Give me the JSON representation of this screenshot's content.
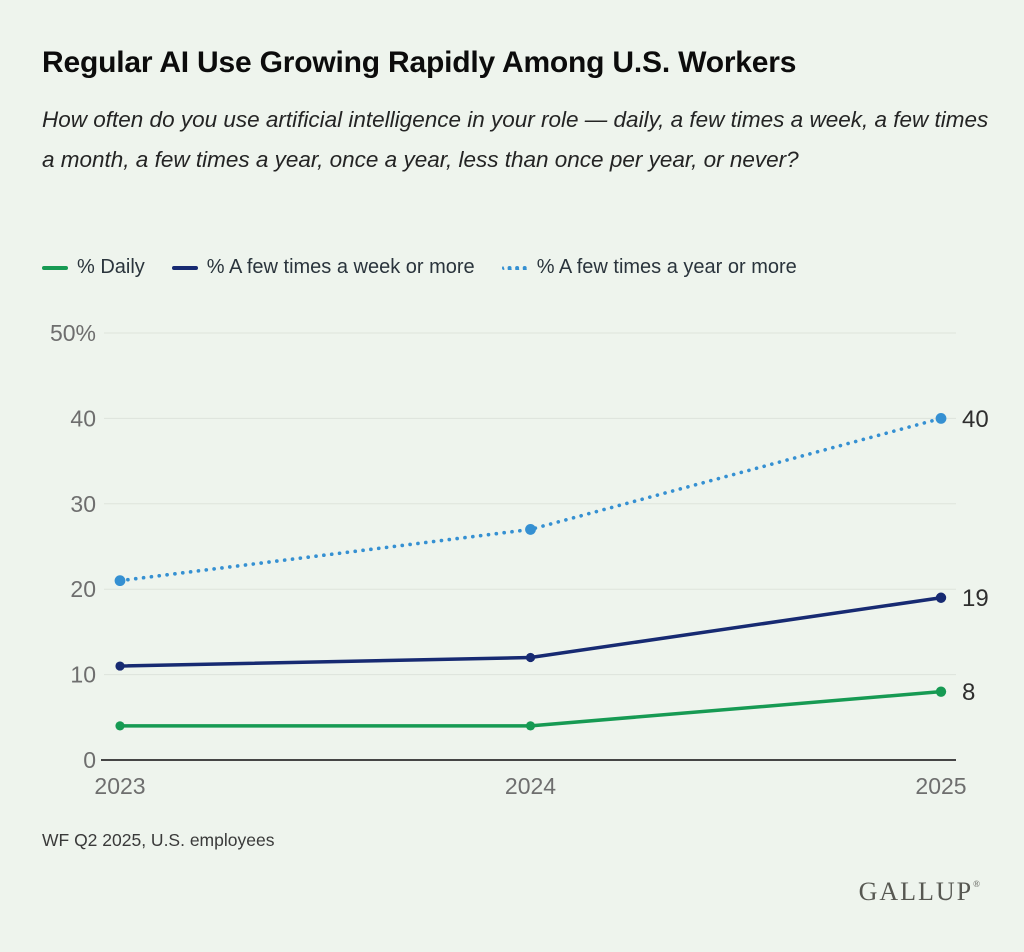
{
  "page": {
    "title": "Regular AI Use Growing Rapidly Among U.S. Workers",
    "subtitle": "How often do you use artificial intelligence in your role — daily, a few times a week, a few times a month, a few times a year, once a year, less than once per year, or never?",
    "footnote": "WF Q2 2025, U.S. employees",
    "brand": "GALLUP",
    "brand_registered": "®"
  },
  "colors": {
    "background": "#eef4ed",
    "grid": "#dde3db",
    "axis": "#454545",
    "tick_label": "#6e6e6e",
    "value_label": "#2e2e2e"
  },
  "chart_data": {
    "type": "line",
    "title": "Regular AI Use Growing Rapidly Among U.S. Workers",
    "x": [
      2023,
      2024,
      2025
    ],
    "x_tick_labels": [
      "2023",
      "2024",
      "2025"
    ],
    "y_ticks": [
      0,
      10,
      20,
      30,
      40,
      50
    ],
    "y_tick_labels": [
      "0",
      "10",
      "20",
      "30",
      "40",
      "50%"
    ],
    "ylim": [
      0,
      50
    ],
    "grid": "horizontal",
    "legend_position": "top",
    "series": [
      {
        "name": "% Daily",
        "color": "#169a53",
        "line_style": "solid",
        "values": [
          4,
          4,
          8
        ]
      },
      {
        "name": "% A few times a week or more",
        "color": "#172a72",
        "line_style": "solid",
        "values": [
          11,
          12,
          19
        ]
      },
      {
        "name": "% A few times a year or more",
        "color": "#3590d2",
        "line_style": "dotted",
        "values": [
          21,
          27,
          40
        ]
      }
    ]
  }
}
